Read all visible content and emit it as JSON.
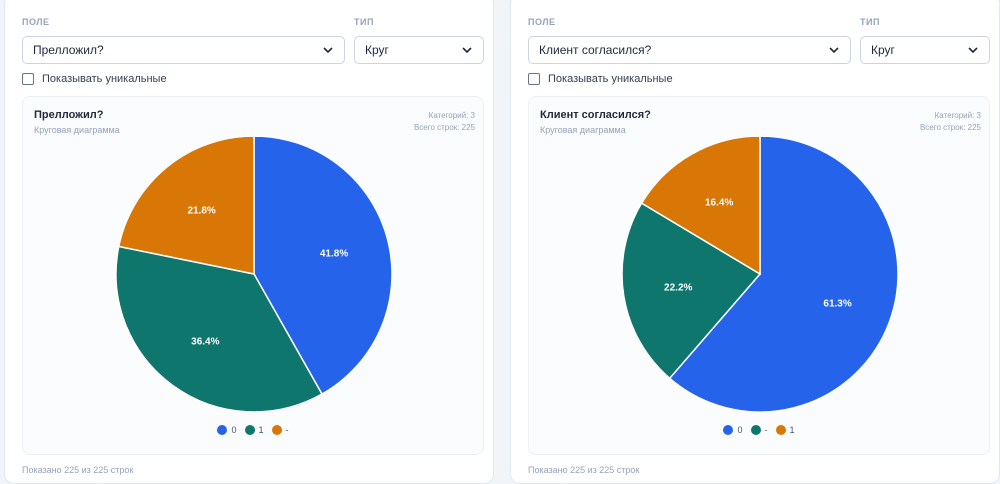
{
  "panels": [
    {
      "field_label": "ПОЛЕ",
      "type_label": "ТИП",
      "field_value": "Прелложил?",
      "type_value": "Круг",
      "unique_label": "Показывать уникальные",
      "chart_title": "Прелложил?",
      "chart_subtitle": "Круговая диаграмма",
      "categories_text": "Категорий: 3",
      "rows_text": "Всего строк: 225",
      "footer": "Показано 225 из 225 строк"
    },
    {
      "field_label": "ПОЛЕ",
      "type_label": "ТИП",
      "field_value": "Клиент согласился?",
      "type_value": "Круг",
      "unique_label": "Показывать уникальные",
      "chart_title": "Клиент согласился?",
      "chart_subtitle": "Круговая диаграмма",
      "categories_text": "Категорий: 3",
      "rows_text": "Всего строк: 225",
      "footer": "Показано 225 из 225 строк"
    }
  ],
  "icons": {
    "select_chevron": "chevron-down-icon",
    "checkbox": "checkbox-icon"
  },
  "chart_data": [
    {
      "type": "pie",
      "title": "Прелложил?",
      "subtitle": "Круговая диаграмма",
      "categories": [
        "0",
        "1",
        "-"
      ],
      "values": [
        41.8,
        36.4,
        21.8
      ],
      "labels": [
        "41.8%",
        "36.4%",
        "21.8%"
      ],
      "colors": [
        "#2563eb",
        "#0f766e",
        "#d97706"
      ],
      "legend_position": "bottom"
    },
    {
      "type": "pie",
      "title": "Клиент согласился?",
      "subtitle": "Круговая диаграмма",
      "categories": [
        "0",
        "-",
        "1"
      ],
      "values": [
        61.3,
        22.2,
        16.4
      ],
      "labels": [
        "61.3%",
        "22.2%",
        "16.4%"
      ],
      "colors": [
        "#2563eb",
        "#0f766e",
        "#d97706"
      ],
      "legend_position": "bottom"
    }
  ]
}
